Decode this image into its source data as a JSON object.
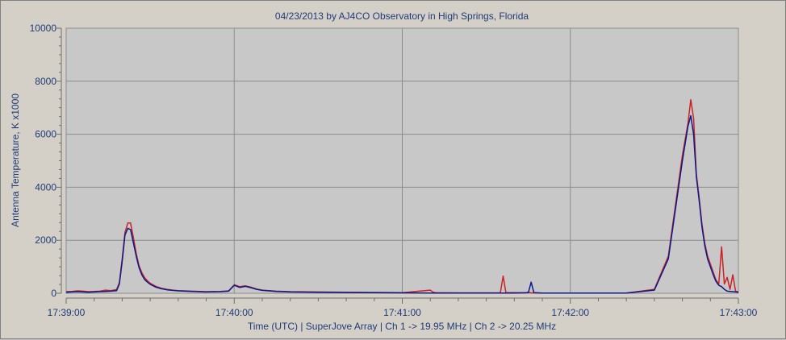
{
  "window": {
    "background": "#d4d0c8"
  },
  "chart_data": {
    "type": "line",
    "title": "04/23/2013  by  AJ4CO Observatory  in  High Springs, Florida",
    "xlabel": "Time (UTC)   |   SuperJove Array   |   Ch 1 -> 19.95 MHz   |   Ch 2 -> 20.25 MHz",
    "ylabel": "Antenna Temperature, K x1000",
    "x_tick_labels": [
      "17:39:00",
      "17:40:00",
      "17:41:00",
      "17:42:00",
      "17:43:00"
    ],
    "y_tick_labels": [
      "0",
      "2000",
      "4000",
      "6000",
      "8000",
      "10000"
    ],
    "xlim_seconds_after_17_39_00": [
      0,
      240
    ],
    "ylim": [
      0,
      10000
    ],
    "grid": true,
    "colors": {
      "plot_bg": "#c8c8c8",
      "grid": "#8c8c8c",
      "text": "#1f3b78",
      "ch1": "#cc2222",
      "ch2": "#0a1a8c"
    },
    "series": [
      {
        "color": "#cc2222",
        "x": [
          0,
          2,
          4,
          6,
          8,
          10,
          12,
          14,
          16,
          18,
          19,
          20,
          21,
          22,
          23,
          24,
          25,
          26,
          27,
          28,
          29,
          30,
          32,
          34,
          36,
          38,
          40,
          45,
          50,
          55,
          58,
          60,
          62,
          64,
          66,
          68,
          70,
          75,
          80,
          90,
          100,
          110,
          120,
          130,
          131,
          132,
          140,
          150,
          155,
          156,
          157,
          160,
          164,
          165,
          166,
          170,
          180,
          190,
          200,
          210,
          215,
          220,
          222,
          223,
          224,
          225,
          226,
          227,
          228,
          229,
          230,
          231,
          232,
          233,
          234,
          235,
          236,
          237,
          238,
          239,
          240
        ],
        "y": [
          60,
          70,
          90,
          80,
          60,
          70,
          80,
          120,
          100,
          140,
          400,
          1300,
          2300,
          2650,
          2650,
          2100,
          1500,
          1050,
          780,
          590,
          470,
          380,
          260,
          190,
          150,
          120,
          100,
          80,
          60,
          70,
          90,
          320,
          250,
          280,
          230,
          160,
          120,
          80,
          60,
          50,
          40,
          30,
          20,
          120,
          40,
          20,
          15,
          15,
          15,
          650,
          20,
          20,
          15,
          40,
          15,
          10,
          10,
          10,
          10,
          150,
          1400,
          5200,
          6400,
          7300,
          6600,
          4500,
          3600,
          2600,
          1900,
          1400,
          1100,
          800,
          500,
          350,
          1750,
          350,
          600,
          150,
          700,
          80,
          50
        ]
      },
      {
        "color": "#0a1a8c",
        "x": [
          0,
          2,
          4,
          6,
          8,
          10,
          12,
          14,
          16,
          18,
          19,
          20,
          21,
          22,
          23,
          24,
          25,
          26,
          27,
          28,
          29,
          30,
          32,
          34,
          36,
          38,
          40,
          45,
          50,
          55,
          58,
          60,
          62,
          64,
          66,
          68,
          70,
          75,
          80,
          90,
          100,
          110,
          120,
          130,
          140,
          150,
          160,
          165,
          166,
          167,
          170,
          180,
          190,
          200,
          210,
          215,
          220,
          222,
          223,
          224,
          225,
          226,
          227,
          228,
          229,
          230,
          231,
          232,
          233,
          234,
          235,
          236,
          238,
          240
        ],
        "y": [
          40,
          50,
          60,
          50,
          40,
          50,
          60,
          70,
          80,
          100,
          350,
          1200,
          2200,
          2450,
          2400,
          1900,
          1400,
          980,
          700,
          520,
          420,
          340,
          230,
          170,
          130,
          110,
          90,
          70,
          50,
          60,
          80,
          300,
          220,
          260,
          210,
          150,
          110,
          70,
          50,
          40,
          30,
          20,
          15,
          10,
          10,
          10,
          10,
          20,
          420,
          20,
          10,
          10,
          10,
          10,
          120,
          1300,
          5000,
          6300,
          6700,
          6000,
          4400,
          3500,
          2500,
          1800,
          1300,
          1000,
          700,
          450,
          300,
          250,
          150,
          80,
          60,
          40
        ]
      }
    ]
  }
}
